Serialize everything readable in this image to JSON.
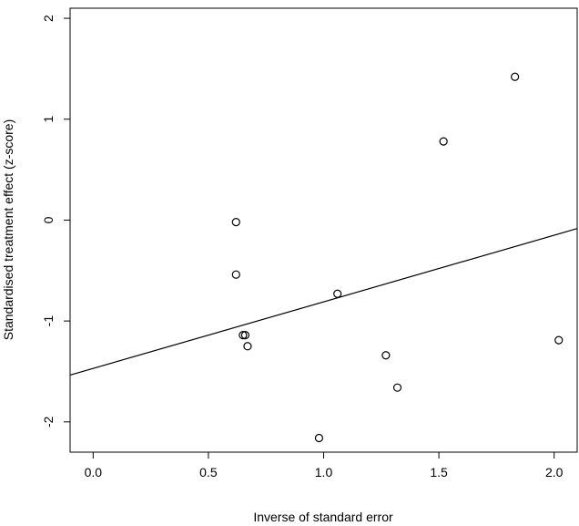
{
  "chart_data": {
    "type": "scatter",
    "xlabel": "Inverse of standard error",
    "ylabel": "Standardised treatment effect (z-score)",
    "xlim": [
      -0.1,
      2.1
    ],
    "ylim": [
      -2.3,
      2.1
    ],
    "x_ticks": [
      0.0,
      0.5,
      1.0,
      1.5,
      2.0
    ],
    "x_tick_labels": [
      "0.0",
      "0.5",
      "1.0",
      "1.5",
      "2.0"
    ],
    "y_ticks": [
      -2,
      -1,
      0,
      1,
      2
    ],
    "y_tick_labels": [
      "-2",
      "-1",
      "0",
      "1",
      "2"
    ],
    "grid": false,
    "legend": "none",
    "points": [
      {
        "x": 0.62,
        "y": -0.02
      },
      {
        "x": 0.62,
        "y": -0.54
      },
      {
        "x": 0.65,
        "y": -1.14
      },
      {
        "x": 0.66,
        "y": -1.14
      },
      {
        "x": 0.67,
        "y": -1.25
      },
      {
        "x": 0.98,
        "y": -2.16
      },
      {
        "x": 1.06,
        "y": -0.73
      },
      {
        "x": 1.27,
        "y": -1.34
      },
      {
        "x": 1.32,
        "y": -1.66
      },
      {
        "x": 1.52,
        "y": 0.78
      },
      {
        "x": 1.83,
        "y": 1.42
      },
      {
        "x": 2.02,
        "y": -1.19
      }
    ],
    "regression_line": {
      "intercept": -1.47,
      "slope": 0.66
    }
  }
}
